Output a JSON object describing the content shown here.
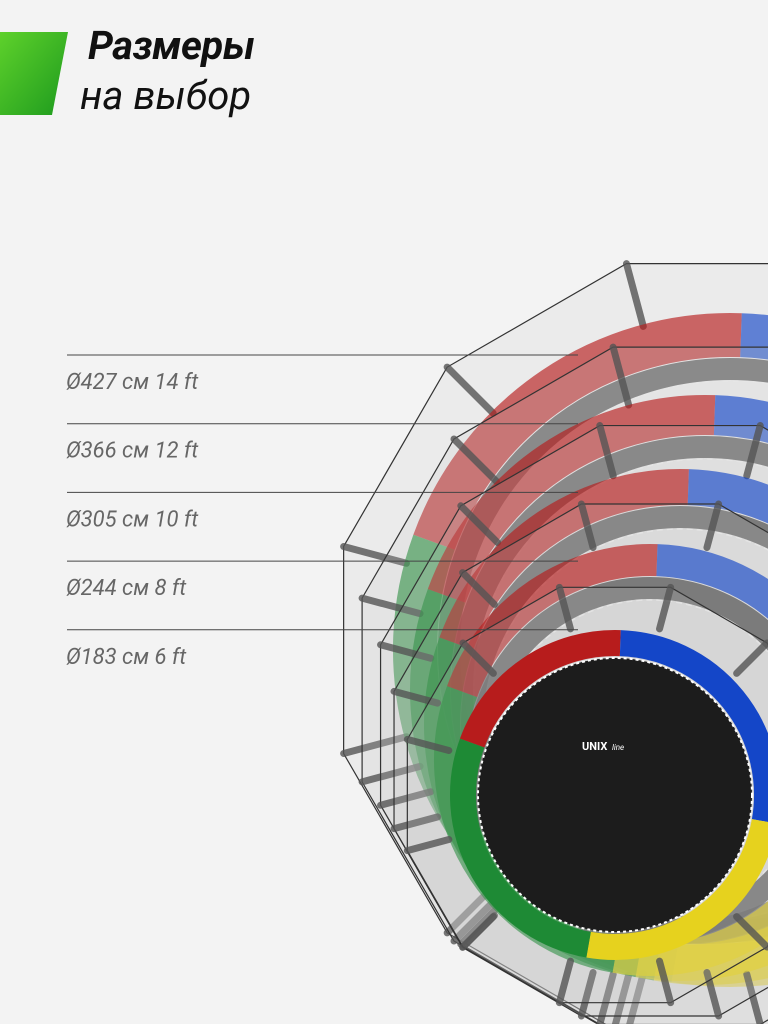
{
  "header": {
    "title": "Размеры",
    "subtitle": "на выбор"
  },
  "sizes": [
    "Ø427 см 14 ft",
    "Ø366 см 12 ft",
    "Ø305 см 10 ft",
    "Ø244 см 8 ft",
    "Ø183 см 6 ft"
  ],
  "logo": {
    "brand": "UNIX",
    "line": "line"
  }
}
